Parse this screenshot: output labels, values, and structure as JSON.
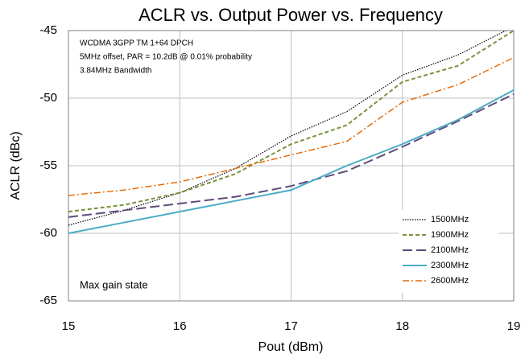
{
  "chart_data": {
    "type": "line",
    "title": "ACLR vs. Output Power vs. Frequency",
    "x_label": "Pout (dBm)",
    "y_label": "ACLR (dBc)",
    "annotations": [
      "WCDMA 3GPP TM 1+64 DPCH",
      "5MHz offset, PAR = 10.2dB @ 0.01% probability",
      "3.84MHz Bandwidth",
      "Max gain state"
    ],
    "x": [
      15,
      15.5,
      16,
      16.5,
      17,
      17.5,
      18,
      18.5,
      19
    ],
    "series": [
      {
        "name": "1500MHz",
        "color": "#000000",
        "style": "dotted",
        "values": [
          -59.4,
          -58.3,
          -57.0,
          -55.2,
          -52.8,
          -51.0,
          -48.3,
          -46.8,
          -44.7
        ]
      },
      {
        "name": "1900MHz",
        "color": "#77933c",
        "style": "dashed",
        "values": [
          -58.4,
          -57.9,
          -57.0,
          -55.6,
          -53.4,
          -52.0,
          -48.8,
          -47.6,
          -45.0
        ]
      },
      {
        "name": "2100MHz",
        "color": "#604a7b",
        "style": "longdash",
        "values": [
          -58.8,
          -58.3,
          -57.8,
          -57.3,
          -56.5,
          -55.4,
          -53.6,
          -51.7,
          -49.7
        ]
      },
      {
        "name": "2300MHz",
        "color": "#4bacc6",
        "style": "solid",
        "values": [
          -60.0,
          -59.2,
          -58.4,
          -57.6,
          -56.8,
          -55.0,
          -53.4,
          -51.6,
          -49.4
        ]
      },
      {
        "name": "2600MHz",
        "color": "#e46c0a",
        "style": "dashdot",
        "values": [
          -57.2,
          -56.8,
          -56.2,
          -55.2,
          -54.2,
          -53.2,
          -50.3,
          -49.0,
          -47.0
        ]
      }
    ],
    "xlim": [
      15,
      19
    ],
    "xticks": [
      15,
      16,
      17,
      18,
      19
    ],
    "ylim": [
      -65,
      -45
    ],
    "yticks": [
      -65,
      -60,
      -55,
      -50,
      -45
    ],
    "grid": true,
    "legend": "lower right"
  }
}
